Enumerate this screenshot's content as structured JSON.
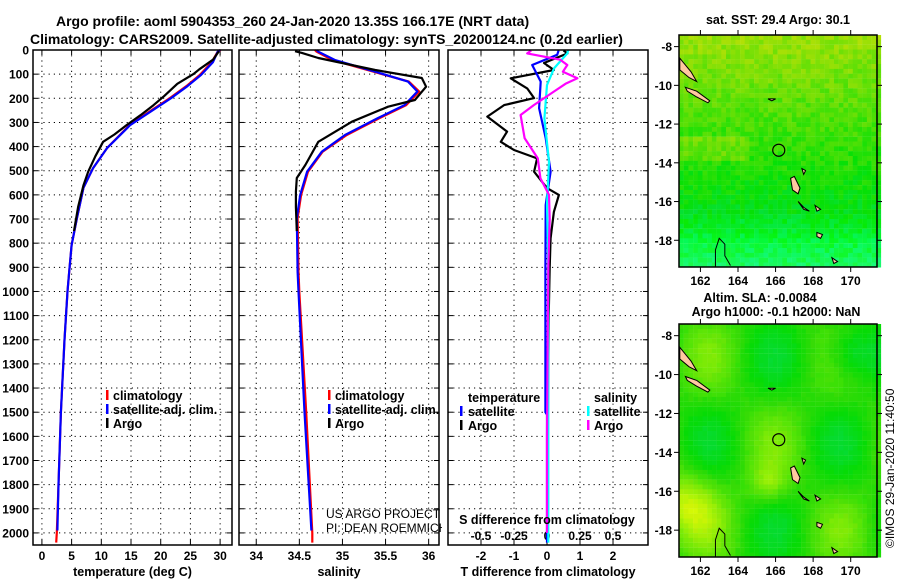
{
  "title": {
    "line1": "Argo profile: aoml 5904353_260 24-Jan-2020 13.35S 166.17E (NRT data)",
    "line2": "Climatology: CARS2009. Satellite-adjusted climatology: synTS_20200124.nc (0.2d earlier)"
  },
  "credit": {
    "line1": "US ARGO PROJECT",
    "line2": "PI: DEAN ROEMMICH"
  },
  "timestamp": "©IMOS 29-Jan-2020 11:40:50",
  "colors": {
    "climatology": "#ff0000",
    "satellite": "#0000ff",
    "argo": "#000000",
    "sal_satellite": "#00ffff",
    "sal_argo": "#ff00ff"
  },
  "chart_data": [
    {
      "type": "line",
      "xlabel": "temperature (deg C)",
      "ylabel": "",
      "xlim": [
        -1.5,
        32
      ],
      "ylim": [
        2050,
        0
      ],
      "xticks": [
        0,
        5,
        10,
        15,
        20,
        25,
        30
      ],
      "yticks": [
        0,
        100,
        200,
        300,
        400,
        500,
        600,
        700,
        800,
        900,
        1000,
        1100,
        1200,
        1300,
        1400,
        1500,
        1600,
        1700,
        1800,
        1900,
        2000
      ],
      "grid": true,
      "legend": [
        "climatology",
        "satellite-adj. clim.",
        "Argo"
      ],
      "series": [
        {
          "name": "climatology",
          "color": "#ff0000",
          "depth": [
            0,
            7,
            50,
            103,
            150,
            200,
            250,
            310,
            405,
            490,
            570,
            695,
            808,
            918,
            1000,
            1200,
            1500,
            1800,
            2000,
            2040
          ],
          "values": [
            30.1,
            29.6,
            28.6,
            26.6,
            24.3,
            21.5,
            18.4,
            14.8,
            11,
            8.6,
            7,
            5.9,
            5,
            4.6,
            4.3,
            3.8,
            3.2,
            2.8,
            2.5,
            2.4
          ]
        },
        {
          "name": "satellite-adj. clim.",
          "color": "#0000ff",
          "depth": [
            0,
            7,
            50,
            103,
            150,
            200,
            250,
            310,
            405,
            490,
            570,
            695,
            808,
            918,
            1000,
            1200,
            1500,
            1800,
            1990
          ],
          "values": [
            30,
            29.6,
            28.8,
            26.8,
            24.5,
            21.7,
            18.6,
            14.9,
            11,
            8.6,
            7,
            5.9,
            5,
            4.6,
            4.3,
            3.8,
            3.2,
            2.8,
            2.6
          ]
        },
        {
          "name": "Argo",
          "color": "#000000",
          "depth": [
            5,
            40,
            80,
            100,
            140,
            190,
            228,
            270,
            310,
            350,
            380,
            440,
            504,
            560,
            650,
            750
          ],
          "values": [
            29.8,
            28.8,
            26.5,
            25.5,
            22.8,
            20.6,
            18.8,
            16.6,
            14.3,
            12.2,
            10.3,
            9,
            7.8,
            7,
            6.1,
            5.4
          ]
        }
      ]
    },
    {
      "type": "line",
      "xlabel": "salinity",
      "xlim": [
        33.8,
        36.12
      ],
      "ylim": [
        2050,
        0
      ],
      "xticks": [
        34,
        34.5,
        35,
        35.5,
        36
      ],
      "grid": true,
      "legend": [
        "climatology",
        "satellite-adj. clim.",
        "Argo"
      ],
      "series": [
        {
          "name": "climatology",
          "color": "#ff0000",
          "depth": [
            0,
            7,
            41,
            90,
            131,
            172,
            228,
            282,
            352,
            421,
            504,
            600,
            696,
            918,
            1000,
            1500,
            2000,
            2040
          ],
          "values": [
            34.68,
            34.7,
            34.88,
            35.36,
            35.77,
            35.89,
            35.74,
            35.43,
            35.05,
            34.77,
            34.6,
            34.52,
            34.48,
            34.49,
            34.5,
            34.58,
            34.65,
            34.65
          ]
        },
        {
          "name": "satellite-adj. clim.",
          "color": "#0000ff",
          "depth": [
            0,
            7,
            41,
            90,
            131,
            172,
            228,
            282,
            352,
            421,
            504,
            600,
            696,
            918,
            1000,
            1500,
            1990
          ],
          "values": [
            34.7,
            34.72,
            34.91,
            35.38,
            35.76,
            35.87,
            35.72,
            35.41,
            35.03,
            34.76,
            34.59,
            34.51,
            34.47,
            34.48,
            34.49,
            34.56,
            34.64
          ]
        },
        {
          "name": "Argo",
          "color": "#000000",
          "depth": [
            5,
            12,
            33,
            83,
            116,
            152,
            207,
            235,
            297,
            380,
            476,
            530,
            587,
            650,
            750
          ],
          "values": [
            34.45,
            34.53,
            34.72,
            35.38,
            35.92,
            35.97,
            35.84,
            35.53,
            35.11,
            34.72,
            34.57,
            34.47,
            34.46,
            34.46,
            34.47
          ]
        }
      ]
    },
    {
      "type": "line",
      "xlabel": "T difference from climatology",
      "x2label": "S difference from climatology",
      "xlim": [
        -3.0,
        3.06
      ],
      "x2lim": [
        -0.75,
        0.765
      ],
      "ylim": [
        2050,
        0
      ],
      "xticks": [
        -2,
        -1,
        0,
        1,
        2
      ],
      "x2ticks": [
        -0.5,
        -0.25,
        0,
        0.25,
        0.5
      ],
      "grid": true,
      "legend": {
        "temperature": {
          "title": "temperature",
          "items": [
            "satellite",
            "Argo"
          ]
        },
        "salinity": {
          "title": "salinity",
          "items": [
            "satellite",
            "Argo"
          ]
        }
      },
      "series": [
        {
          "name": "T Argo",
          "axis": "T",
          "color": "#000000",
          "depth": [
            2,
            14,
            54,
            83,
            117,
            159,
            199,
            228,
            276,
            338,
            380,
            414,
            449,
            504,
            572,
            600,
            670,
            780,
            900,
            1100,
            1500,
            1900,
            2000
          ],
          "values": [
            0.5,
            0.62,
            -0.09,
            0.21,
            -1.1,
            -0.6,
            -0.39,
            -1.3,
            -1.81,
            -1.21,
            -1.4,
            -1.0,
            -0.3,
            -0.39,
            0.0,
            0.36,
            0.21,
            0.11,
            0.08,
            0.05,
            0.03,
            0.03,
            0.02
          ]
        },
        {
          "name": "T satellite",
          "axis": "T",
          "color": "#0000ff",
          "depth": [
            2,
            20,
            62,
            131,
            241,
            365,
            504,
            642,
            900,
            1500,
            1510,
            2040
          ],
          "values": [
            0.35,
            0.31,
            -0.45,
            -0.19,
            -0.24,
            -0.04,
            0.11,
            -0.04,
            -0.05,
            -0.05,
            0.0,
            0.0
          ]
        },
        {
          "name": "S satellite",
          "axis": "S",
          "color": "#00ffff",
          "depth": [
            2,
            14,
            76,
            145,
            283,
            462,
            640,
            900,
            1200,
            1500,
            2040
          ],
          "values": [
            0.16,
            0.154,
            0.053,
            0.0,
            -0.02,
            0.015,
            0.0,
            0.01,
            0.01,
            0.01,
            0.01
          ]
        },
        {
          "name": "S Argo",
          "axis": "S",
          "color": "#ff00ff",
          "depth": [
            2,
            14,
            40,
            62,
            90,
            117,
            140,
            172,
            228,
            269,
            365,
            449,
            531,
            600,
            700,
            900,
            1200,
            1600,
            1900,
            2000
          ],
          "values": [
            -0.12,
            -0.15,
            0.1,
            0.154,
            0.12,
            0.23,
            0.14,
            0.053,
            -0.1,
            -0.2,
            -0.17,
            -0.07,
            -0.05,
            0.015,
            0.02,
            0.01,
            0.005,
            0.0,
            0.0,
            0.0
          ]
        }
      ]
    },
    {
      "type": "heatmap",
      "title": "sat. SST: 29.4 Argo: 30.1",
      "lonlim": [
        160.86,
        171.4
      ],
      "latlim": [
        -19.38,
        -7.4
      ],
      "xticks": [
        162,
        164,
        166,
        168,
        170
      ],
      "yticks": [
        -8,
        -10,
        -12,
        -14,
        -16,
        -18
      ],
      "argo_position": {
        "lon": 166.17,
        "lat": -13.35
      }
    },
    {
      "type": "heatmap",
      "title": "Altim. SLA: -0.0084",
      "subtitle": "Argo h1000: -0.1 h2000: NaN",
      "lonlim": [
        160.86,
        171.4
      ],
      "latlim": [
        -19.38,
        -7.4
      ],
      "xticks": [
        162,
        164,
        166,
        168,
        170
      ],
      "yticks": [
        -8,
        -10,
        -12,
        -14,
        -16,
        -18
      ],
      "argo_position": {
        "lon": 166.17,
        "lat": -13.35
      }
    }
  ]
}
